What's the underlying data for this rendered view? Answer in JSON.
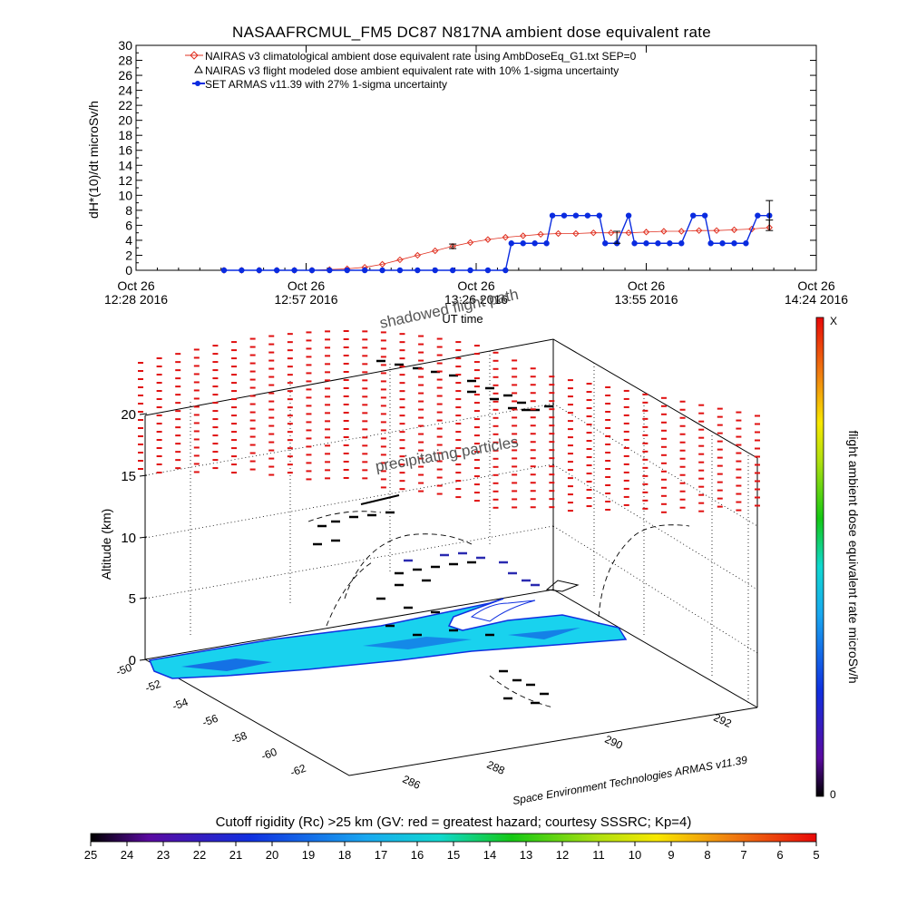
{
  "title": "NASAAFRCMUL_FM5 DC87 N817NA ambient dose equivalent rate",
  "credit": "Space Environment Technologies ARMAS v11.39",
  "colors": {
    "nairas_clim": "#e03020",
    "armas": "#0a2be0",
    "cyan_region": "#19d2ee",
    "flight_red": "#e01010"
  },
  "chart_data": [
    {
      "type": "line",
      "ylabel": "dH*(10)/dt microSv/h",
      "xlabel": "UT time",
      "ylim": [
        0,
        30
      ],
      "yticks": [
        0,
        2,
        4,
        6,
        8,
        10,
        12,
        14,
        16,
        18,
        20,
        22,
        24,
        26,
        28,
        30
      ],
      "xticks": [
        {
          "day": "Oct 26",
          "time": "12:28 2016"
        },
        {
          "day": "Oct 26",
          "time": "12:57 2016"
        },
        {
          "day": "Oct 26",
          "time": "13:26 2016"
        },
        {
          "day": "Oct 26",
          "time": "13:55 2016"
        },
        {
          "day": "Oct 26",
          "time": "14:24 2016"
        }
      ],
      "xrange_minutes": [
        0,
        116
      ],
      "legend": [
        "NAIRAS v3 climatological ambient dose equivalent rate using AmbDoseEq_G1.txt SEP=0",
        "NAIRAS v3 flight modeled dose ambient equivalent rate with 10% 1-sigma uncertainty",
        "SET ARMAS v11.39 with 27% 1-sigma uncertainty"
      ],
      "series": [
        {
          "name": "NAIRAS v3 climatological ambient dose equivalent rate using AmbDoseEq_G1.txt SEP=0",
          "marker": "diamond",
          "x_minutes": [
            15,
            18,
            21,
            24,
            27,
            30,
            33,
            36,
            39,
            42,
            45,
            48,
            51,
            54,
            57,
            60,
            63,
            66,
            69,
            72,
            75,
            78,
            81,
            84,
            87,
            90,
            93,
            96,
            99,
            102,
            105,
            108
          ],
          "values": [
            0,
            0,
            0,
            0,
            0,
            0,
            0.1,
            0.2,
            0.4,
            0.8,
            1.4,
            2.0,
            2.6,
            3.2,
            3.7,
            4.1,
            4.4,
            4.6,
            4.8,
            4.9,
            4.9,
            5.0,
            5.0,
            5.0,
            5.1,
            5.2,
            5.2,
            5.3,
            5.3,
            5.4,
            5.5,
            5.7
          ]
        },
        {
          "name": "NAIRAS v3 flight modeled dose ambient equivalent rate with 10% 1-sigma uncertainty",
          "marker": "errorbar",
          "x_minutes": [
            54,
            82,
            108
          ],
          "values": [
            3.2,
            4.4,
            6.0
          ],
          "errors": [
            0.3,
            0.8,
            0.7
          ]
        },
        {
          "name": "SET ARMAS v11.39 with 27% 1-sigma uncertainty",
          "marker": "dot",
          "x_minutes": [
            15,
            18,
            21,
            24,
            27,
            30,
            33,
            36,
            39,
            42,
            45,
            48,
            51,
            54,
            57,
            60,
            63,
            64,
            66,
            68,
            70,
            71,
            73,
            75,
            77,
            79,
            80,
            82,
            84,
            85,
            87,
            89,
            91,
            93,
            95,
            97,
            98,
            100,
            102,
            104,
            106,
            108
          ],
          "values": [
            0,
            0,
            0,
            0,
            0,
            0,
            0,
            0,
            0,
            0,
            0,
            0,
            0,
            0,
            0,
            0,
            0,
            3.6,
            3.6,
            3.6,
            3.6,
            7.3,
            7.3,
            7.3,
            7.3,
            7.3,
            3.6,
            3.6,
            7.3,
            3.6,
            3.6,
            3.6,
            3.6,
            3.6,
            7.3,
            7.3,
            3.6,
            3.6,
            3.6,
            3.6,
            7.3,
            7.3
          ],
          "error_last": 2.0
        }
      ]
    },
    {
      "type": "scatter",
      "ylabel": "Altitude (km)",
      "zticks": [
        0,
        5,
        10,
        15,
        20
      ],
      "lat_ticks": [
        "-50",
        "-52",
        "-54",
        "-56",
        "-58",
        "-60",
        "-62"
      ],
      "lon_ticks": [
        "286",
        "288",
        "290",
        "292"
      ],
      "annotations": [
        "shadowed flight path",
        "precipitating particles"
      ],
      "colorbar_label": "flight ambient dose equivalent rate microSv/h",
      "colorbar_top": "X",
      "colorbar_bottom": "0"
    },
    {
      "type": "heatmap",
      "title": "Cutoff rigidity (Rc) >25 km (GV: red = greatest hazard; courtesy SSSRC; Kp=4)",
      "scale_labels": [
        "25",
        "24",
        "23",
        "22",
        "21",
        "20",
        "19",
        "18",
        "17",
        "16",
        "15",
        "14",
        "13",
        "12",
        "11",
        "10",
        "9",
        "8",
        "7",
        "6",
        "5"
      ]
    }
  ]
}
